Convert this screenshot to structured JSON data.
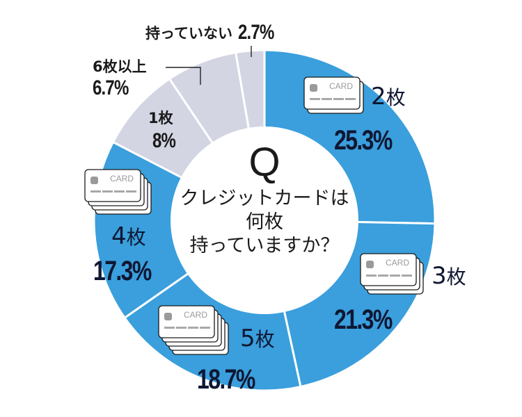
{
  "chart_data": {
    "type": "pie",
    "variant": "donut",
    "title": "Q クレジットカードは何枚持っていますか？",
    "start_angle_deg": 0,
    "direction": "clockwise",
    "categories": [
      "2枚",
      "3枚",
      "5枚",
      "4枚",
      "1枚",
      "6枚以上",
      "持っていない"
    ],
    "values": [
      25.3,
      21.3,
      18.7,
      17.3,
      8,
      6.7,
      2.7
    ],
    "labels": [
      "25.3%",
      "21.3%",
      "18.7%",
      "17.3%",
      "8%",
      "6.7%",
      "2.7%"
    ],
    "colors": [
      "#3a9fdc",
      "#3a9fdc",
      "#3a9fdc",
      "#3a9fdc",
      "#d3d5e3",
      "#d3d5e3",
      "#d3d5e3"
    ],
    "card_icon_counts": [
      2,
      3,
      5,
      4,
      0,
      0,
      0
    ],
    "card_icon_text": "CARD",
    "legend": "none"
  },
  "question": {
    "letter": "Q",
    "line1": "クレジットカードは",
    "line2": "何枚",
    "line3": "持っていますか？"
  },
  "slices": {
    "two": {
      "count": "2",
      "unit": "枚",
      "pct": "25.3%"
    },
    "three": {
      "count": "3",
      "unit": "枚",
      "pct": "21.3%"
    },
    "five": {
      "count": "5",
      "unit": "枚",
      "pct": "18.7%"
    },
    "four": {
      "count": "4",
      "unit": "枚",
      "pct": "17.3%"
    },
    "one": {
      "label": "1枚",
      "pct": "8%"
    },
    "six": {
      "label": "6枚以上",
      "pct": "6.7%"
    },
    "none": {
      "label": "持っていない",
      "pct": "2.7%"
    }
  },
  "colors": {
    "blue": "#3a9fdc",
    "gray": "#d3d5e3",
    "center": "#ffffff",
    "text": "#0f1733"
  }
}
